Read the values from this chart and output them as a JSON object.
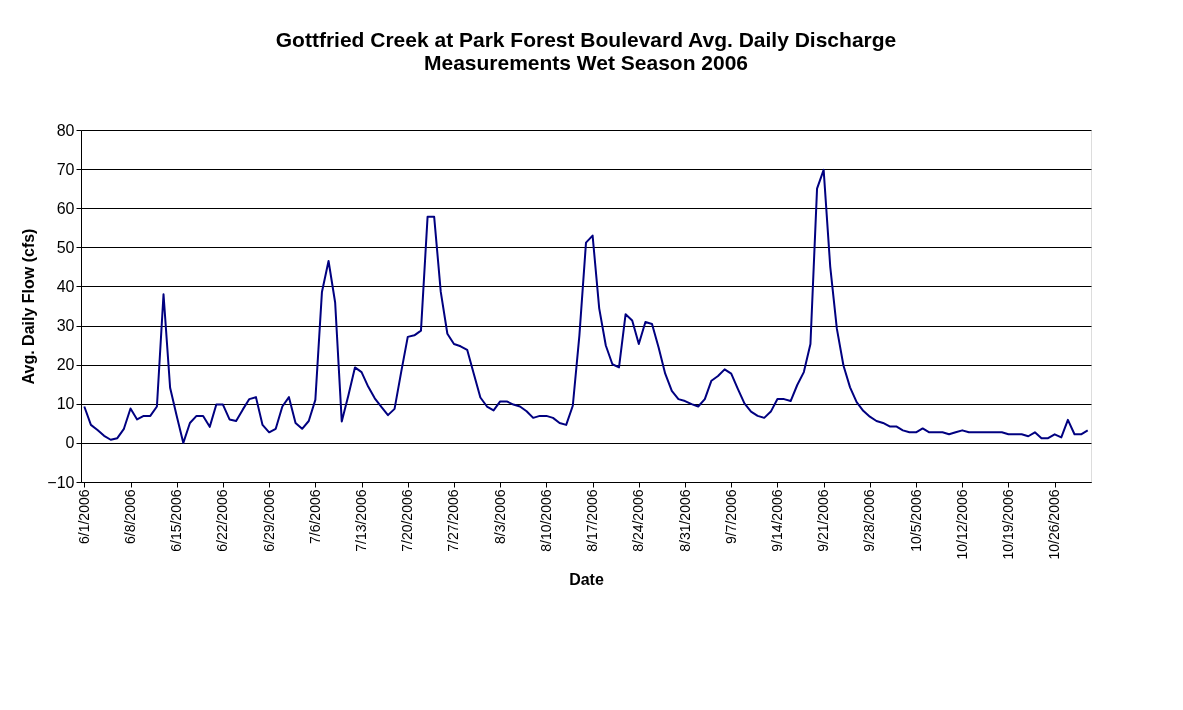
{
  "chart_data": {
    "type": "line",
    "title": "Gottfried Creek at Park Forest Boulevard Avg. Daily Discharge Measurements Wet Season 2006",
    "xlabel": "Date",
    "ylabel": "Avg. Daily Flow (cfs)",
    "categories": [
      "6/1/2006",
      null,
      null,
      null,
      null,
      null,
      null,
      "6/8/2006",
      null,
      null,
      null,
      null,
      null,
      null,
      "6/15/2006",
      null,
      null,
      null,
      null,
      null,
      null,
      "6/22/2006",
      null,
      null,
      null,
      null,
      null,
      null,
      "6/29/2006",
      null,
      null,
      null,
      null,
      null,
      null,
      "7/6/2006",
      null,
      null,
      null,
      null,
      null,
      null,
      "7/13/2006",
      null,
      null,
      null,
      null,
      null,
      null,
      "7/20/2006",
      null,
      null,
      null,
      null,
      null,
      null,
      "7/27/2006",
      null,
      null,
      null,
      null,
      null,
      null,
      "8/3/2006",
      null,
      null,
      null,
      null,
      null,
      null,
      "8/10/2006",
      null,
      null,
      null,
      null,
      null,
      null,
      "8/17/2006",
      null,
      null,
      null,
      null,
      null,
      null,
      "8/24/2006",
      null,
      null,
      null,
      null,
      null,
      null,
      "8/31/2006",
      null,
      null,
      null,
      null,
      null,
      null,
      "9/7/2006",
      null,
      null,
      null,
      null,
      null,
      null,
      "9/14/2006",
      null,
      null,
      null,
      null,
      null,
      null,
      "9/21/2006",
      null,
      null,
      null,
      null,
      null,
      null,
      "9/28/2006",
      null,
      null,
      null,
      null,
      null,
      null,
      "10/5/2006",
      null,
      null,
      null,
      null,
      null,
      null,
      "10/12/2006",
      null,
      null,
      null,
      null,
      null,
      null,
      "10/19/2006",
      null,
      null,
      null,
      null,
      null,
      null,
      "10/26/2006",
      null,
      null,
      null,
      null,
      null
    ],
    "series": [
      {
        "color": "#000080",
        "values": [
          9.3,
          4.6,
          3.3,
          1.8,
          0.8,
          1.2,
          3.6,
          8.8,
          6.0,
          6.9,
          6.9,
          9.3,
          38.0,
          14.1,
          6.9,
          0,
          5.1,
          6.9,
          6.9,
          4.1,
          9.8,
          9.8,
          6.0,
          5.6,
          8.5,
          11.2,
          11.7,
          4.6,
          2.7,
          3.6,
          9.3,
          11.7,
          5.1,
          3.6,
          5.6,
          11.0,
          38.6,
          46.5,
          35.9,
          5.5,
          12.1,
          19.3,
          18.1,
          14.4,
          11.4,
          9.2,
          7.1,
          8.7,
          18.1,
          27.1,
          27.5,
          28.7,
          57.8,
          57.8,
          38.6,
          27.9,
          25.3,
          24.7,
          23.8,
          17.7,
          11.6,
          9.3,
          8.3,
          10.6,
          10.6,
          9.8,
          9.3,
          8.1,
          6.4,
          6.9,
          6.9,
          6.4,
          5.1,
          4.6,
          9.5,
          27.5,
          51.2,
          53.0,
          34.4,
          24.9,
          20.1,
          19.3,
          32.9,
          31.3,
          25.3,
          30.9,
          30.4,
          24.4,
          17.7,
          13.3,
          11.2,
          10.7,
          9.9,
          9.3,
          11.2,
          15.9,
          17.1,
          18.8,
          17.7,
          13.8,
          10.1,
          8.0,
          6.9,
          6.4,
          8.0,
          11.2,
          11.2,
          10.7,
          14.8,
          18.1,
          25.3,
          65.0,
          69.8,
          45,
          29.2,
          19.8,
          14.2,
          10.4,
          8.2,
          6.7,
          5.6,
          5.1,
          4.2,
          4.2,
          3.2,
          2.7,
          2.7,
          3.7,
          2.7,
          2.7,
          2.7,
          2.2,
          2.7,
          3.2,
          2.7,
          2.7,
          2.7,
          2.7,
          2.7,
          2.7,
          2.2,
          2.2,
          2.2,
          1.7,
          2.7,
          1.2,
          1.2,
          2.2,
          1.4,
          5.9,
          2.2,
          2.2,
          3.2
        ]
      }
    ],
    "ylim": [
      -10,
      80
    ],
    "yticks": [
      -10,
      0,
      10,
      20,
      30,
      40,
      50,
      60,
      70,
      80
    ],
    "grid": "y"
  }
}
